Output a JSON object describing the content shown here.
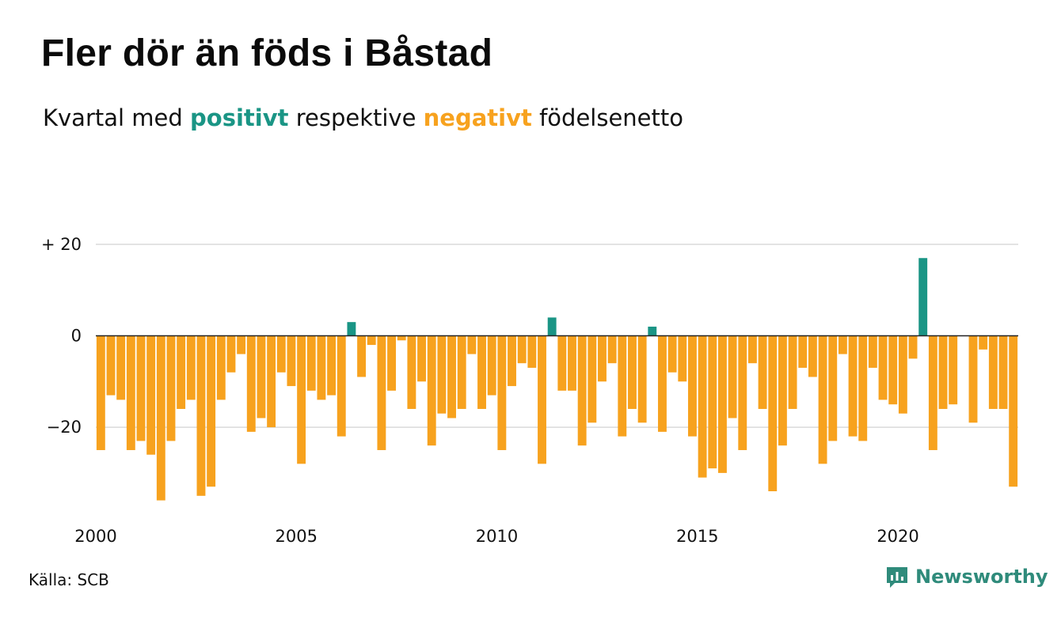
{
  "title": "Fler dör än föds i Båstad",
  "subtitle": {
    "prefix": "Kvartal med",
    "positive_word": "positivt",
    "middle": "respektive",
    "negative_word": "negativt",
    "suffix": "födelsenetto"
  },
  "source": "Källa: SCB",
  "logo": {
    "text": "Newsworthy",
    "icon": "chart-speech-bubble-icon"
  },
  "colors": {
    "positive": "#1a9585",
    "negative": "#f7a21e",
    "grid": "#d9d9d9",
    "zero_line": "#222222",
    "logo": "#2f8b7b"
  },
  "chart_data": {
    "type": "bar",
    "title": "Fler dör än föds i Båstad",
    "xlabel": "",
    "ylabel": "",
    "grid": true,
    "legend": "none",
    "ylim": [
      -37,
      22
    ],
    "y_ticks": [
      {
        "value": 20,
        "label": "+ 20"
      },
      {
        "value": 0,
        "label": "0"
      },
      {
        "value": -20,
        "label": "−20"
      }
    ],
    "x_ticks": [
      "2000",
      "2005",
      "2010",
      "2015",
      "2020"
    ],
    "first_year": 2000,
    "periods_per_year": 4,
    "values": [
      -25,
      -13,
      -14,
      -25,
      -23,
      -26,
      -36,
      -23,
      -16,
      -14,
      -35,
      -33,
      -14,
      -8,
      -4,
      -21,
      -18,
      -20,
      -8,
      -11,
      -28,
      -12,
      -14,
      -13,
      -22,
      3,
      -9,
      -2,
      -25,
      -12,
      -1,
      -16,
      -10,
      -24,
      -17,
      -18,
      -16,
      -4,
      -16,
      -13,
      -25,
      -11,
      -6,
      -7,
      -28,
      4,
      -12,
      -12,
      -24,
      -19,
      -10,
      -6,
      -22,
      -16,
      -19,
      2,
      -21,
      -8,
      -10,
      -22,
      -31,
      -29,
      -30,
      -18,
      -25,
      -6,
      -16,
      -34,
      -24,
      -16,
      -7,
      -9,
      -28,
      -23,
      -4,
      -22,
      -23,
      -7,
      -14,
      -15,
      -17,
      -5,
      17,
      -25,
      -16,
      -15,
      null,
      -19,
      -3,
      -16,
      -16,
      -33
    ]
  }
}
